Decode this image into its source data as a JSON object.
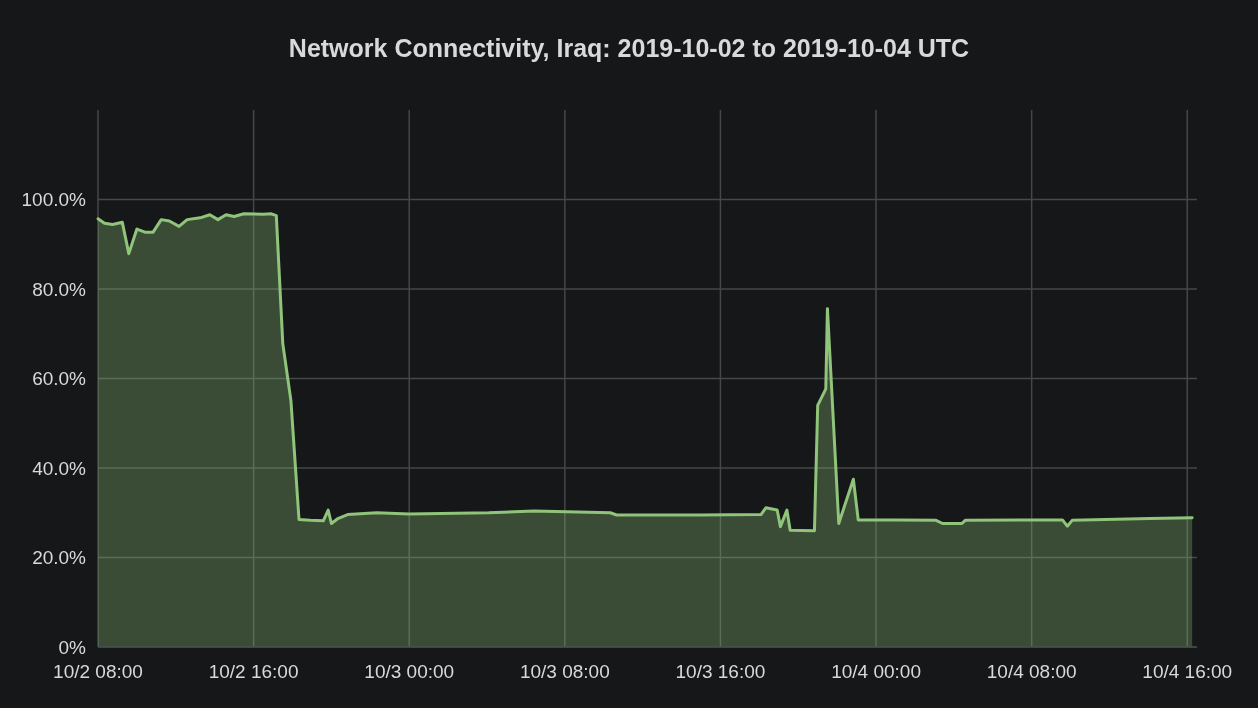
{
  "chart_data": {
    "type": "area",
    "title": "Network Connectivity, Iraq: 2019-10-02 to 2019-10-04 UTC",
    "xlim": [
      "2019-10-02T08:00",
      "2019-10-04T16:30"
    ],
    "xticks": [
      {
        "value": "2019-10-02T08:00",
        "label": "10/2 08:00"
      },
      {
        "value": "2019-10-02T16:00",
        "label": "10/2 16:00"
      },
      {
        "value": "2019-10-03T00:00",
        "label": "10/3 00:00"
      },
      {
        "value": "2019-10-03T08:00",
        "label": "10/3 08:00"
      },
      {
        "value": "2019-10-03T16:00",
        "label": "10/3 16:00"
      },
      {
        "value": "2019-10-04T00:00",
        "label": "10/4 00:00"
      },
      {
        "value": "2019-10-04T08:00",
        "label": "10/4 08:00"
      },
      {
        "value": "2019-10-04T16:00",
        "label": "10/4 16:00"
      }
    ],
    "ylim": [
      0,
      120
    ],
    "yticks": [
      {
        "value": 0,
        "label": "0%"
      },
      {
        "value": 20,
        "label": "20.0%"
      },
      {
        "value": 40,
        "label": "40.0%"
      },
      {
        "value": 60,
        "label": "60.0%"
      },
      {
        "value": 80,
        "label": "80.0%"
      },
      {
        "value": 100,
        "label": "100.0%"
      }
    ],
    "grid": true,
    "series": [
      {
        "color": "#8fc47a",
        "x": [
          "2019-10-02T08:00",
          "2019-10-02T08:20",
          "2019-10-02T08:45",
          "2019-10-02T09:15",
          "2019-10-02T09:35",
          "2019-10-02T10:00",
          "2019-10-02T10:25",
          "2019-10-02T10:50",
          "2019-10-02T11:15",
          "2019-10-02T11:40",
          "2019-10-02T12:10",
          "2019-10-02T12:35",
          "2019-10-02T13:15",
          "2019-10-02T13:45",
          "2019-10-02T14:10",
          "2019-10-02T14:35",
          "2019-10-02T15:00",
          "2019-10-02T15:30",
          "2019-10-02T16:30",
          "2019-10-02T16:55",
          "2019-10-02T17:10",
          "2019-10-02T17:30",
          "2019-10-02T17:55",
          "2019-10-02T18:20",
          "2019-10-02T18:55",
          "2019-10-02T19:35",
          "2019-10-02T19:50",
          "2019-10-02T20:00",
          "2019-10-02T20:20",
          "2019-10-02T20:50",
          "2019-10-02T22:20",
          "2019-10-03T00:00",
          "2019-10-03T04:05",
          "2019-10-03T06:25",
          "2019-10-03T08:05",
          "2019-10-03T10:20",
          "2019-10-03T10:40",
          "2019-10-03T12:55",
          "2019-10-03T14:55",
          "2019-10-03T18:05",
          "2019-10-03T18:20",
          "2019-10-03T18:55",
          "2019-10-03T19:05",
          "2019-10-03T19:25",
          "2019-10-03T19:35",
          "2019-10-03T20:50",
          "2019-10-03T21:00",
          "2019-10-03T21:25",
          "2019-10-03T21:30",
          "2019-10-03T22:05",
          "2019-10-03T22:50",
          "2019-10-03T23:05",
          "2019-10-04T01:10",
          "2019-10-04T03:05",
          "2019-10-04T03:25",
          "2019-10-04T04:25",
          "2019-10-04T04:35",
          "2019-10-04T09:35",
          "2019-10-04T09:50",
          "2019-10-04T10:05",
          "2019-10-04T14:05",
          "2019-10-04T16:15"
        ],
        "values": [
          95.7,
          94.7,
          94.4,
          94.9,
          87.9,
          93.4,
          92.7,
          92.7,
          95.5,
          95.2,
          94.0,
          95.5,
          95.9,
          96.6,
          95.5,
          96.6,
          96.2,
          96.8,
          96.7,
          96.8,
          96.4,
          67.8,
          55.1,
          28.5,
          28.3,
          28.2,
          30.6,
          27.6,
          28.7,
          29.6,
          30.0,
          29.7,
          30.0,
          30.4,
          30.2,
          30.0,
          29.5,
          29.5,
          29.5,
          29.6,
          31.1,
          30.6,
          26.9,
          30.6,
          26.1,
          26.0,
          54.0,
          57.7,
          75.6,
          27.6,
          37.5,
          28.4,
          28.4,
          28.3,
          27.6,
          27.6,
          28.3,
          28.4,
          27.0,
          28.3,
          28.7,
          28.9
        ]
      }
    ]
  }
}
